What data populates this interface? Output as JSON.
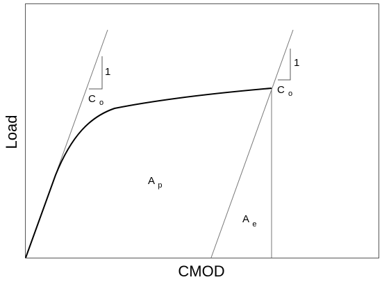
{
  "axes": {
    "x_label": "CMOD",
    "y_label": "Load"
  },
  "labels": {
    "slope_one_left": "1",
    "co_left_main": "C",
    "co_left_sub": "o",
    "slope_one_right": "1",
    "co_right_main": "C",
    "co_right_sub": "o",
    "ap_main": "A",
    "ap_sub": "p",
    "ae_main": "A",
    "ae_sub": "e"
  },
  "colors": {
    "frame": "#555555",
    "curve": "#000000",
    "guide": "#777777"
  }
}
